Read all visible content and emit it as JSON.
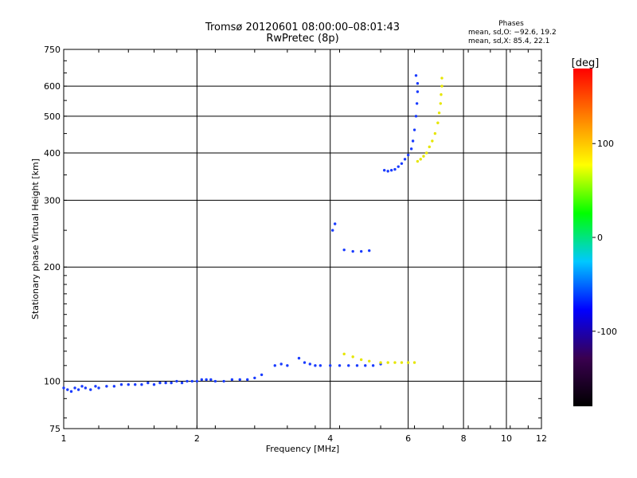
{
  "chart_data": {
    "type": "scatter",
    "title": "Tromsø 20120601 08:00:00–08:01:43",
    "subtitle": "RwPretec (8p)",
    "xlabel": "Frequency [MHz]",
    "ylabel": "Stationary phase Virtual Height [km]",
    "x_scale": "log",
    "y_scale": "log",
    "xlim": [
      1,
      12
    ],
    "ylim": [
      75,
      750
    ],
    "x_ticks": [
      1,
      2,
      4,
      6,
      8,
      10,
      12
    ],
    "y_ticks": [
      75,
      100,
      200,
      300,
      400,
      500,
      600,
      750
    ],
    "grid": true,
    "stats": {
      "heading": "Phases",
      "line1": "mean, sd,O: −92.6, 19.2",
      "line2": "mean, sd,X:  85.4, 22.1"
    },
    "colorbar": {
      "label": "[deg]",
      "range": [
        -180,
        180
      ],
      "ticks": [
        100,
        0,
        -100
      ],
      "colors": [
        "#000000",
        "#3a0050",
        "#0000ff",
        "#00c8ff",
        "#00ff00",
        "#ffff00",
        "#ff8000",
        "#ff0000"
      ]
    },
    "series": [
      {
        "mode": "O",
        "color": "#1a3cff",
        "points": [
          [
            1.0,
            96
          ],
          [
            1.02,
            95
          ],
          [
            1.04,
            94
          ],
          [
            1.06,
            96
          ],
          [
            1.08,
            95
          ],
          [
            1.1,
            97
          ],
          [
            1.12,
            96
          ],
          [
            1.15,
            95
          ],
          [
            1.18,
            97
          ],
          [
            1.2,
            96
          ],
          [
            1.25,
            97
          ],
          [
            1.3,
            97
          ],
          [
            1.35,
            98
          ],
          [
            1.4,
            98
          ],
          [
            1.45,
            98
          ],
          [
            1.5,
            98
          ],
          [
            1.55,
            99
          ],
          [
            1.6,
            98
          ],
          [
            1.65,
            99
          ],
          [
            1.7,
            99
          ],
          [
            1.75,
            99
          ],
          [
            1.8,
            100
          ],
          [
            1.85,
            99
          ],
          [
            1.9,
            100
          ],
          [
            1.95,
            100
          ],
          [
            2.0,
            100
          ],
          [
            2.05,
            101
          ],
          [
            2.1,
            101
          ],
          [
            2.15,
            101
          ],
          [
            2.2,
            100
          ],
          [
            2.3,
            100
          ],
          [
            2.4,
            101
          ],
          [
            2.5,
            101
          ],
          [
            2.6,
            101
          ],
          [
            2.7,
            102
          ],
          [
            2.8,
            104
          ],
          [
            3.0,
            110
          ],
          [
            3.1,
            111
          ],
          [
            3.2,
            110
          ],
          [
            3.4,
            115
          ],
          [
            3.5,
            112
          ],
          [
            3.6,
            111
          ],
          [
            3.7,
            110
          ],
          [
            3.8,
            110
          ],
          [
            4.0,
            110
          ],
          [
            4.2,
            110
          ],
          [
            4.4,
            110
          ],
          [
            4.6,
            110
          ],
          [
            4.8,
            110
          ],
          [
            5.0,
            110
          ],
          [
            5.2,
            111
          ],
          [
            4.3,
            222
          ],
          [
            4.5,
            220
          ],
          [
            4.7,
            220
          ],
          [
            4.9,
            221
          ],
          [
            4.1,
            260
          ],
          [
            4.05,
            250
          ],
          [
            5.3,
            360
          ],
          [
            5.4,
            358
          ],
          [
            5.5,
            360
          ],
          [
            5.6,
            362
          ],
          [
            5.7,
            368
          ],
          [
            5.8,
            375
          ],
          [
            5.9,
            385
          ],
          [
            6.0,
            395
          ],
          [
            6.1,
            410
          ],
          [
            6.15,
            430
          ],
          [
            6.2,
            460
          ],
          [
            6.25,
            500
          ],
          [
            6.28,
            540
          ],
          [
            6.3,
            580
          ],
          [
            6.3,
            610
          ],
          [
            6.25,
            640
          ]
        ]
      },
      {
        "mode": "X",
        "color": "#e6e600",
        "points": [
          [
            4.3,
            118
          ],
          [
            4.5,
            116
          ],
          [
            4.7,
            114
          ],
          [
            4.9,
            113
          ],
          [
            5.2,
            112
          ],
          [
            5.4,
            112
          ],
          [
            5.6,
            112
          ],
          [
            5.8,
            112
          ],
          [
            6.0,
            112
          ],
          [
            6.2,
            112
          ],
          [
            6.3,
            380
          ],
          [
            6.4,
            385
          ],
          [
            6.5,
            392
          ],
          [
            6.6,
            400
          ],
          [
            6.7,
            415
          ],
          [
            6.8,
            430
          ],
          [
            6.9,
            450
          ],
          [
            7.0,
            480
          ],
          [
            7.05,
            510
          ],
          [
            7.1,
            540
          ],
          [
            7.12,
            570
          ],
          [
            7.15,
            600
          ],
          [
            7.15,
            630
          ]
        ]
      }
    ]
  }
}
